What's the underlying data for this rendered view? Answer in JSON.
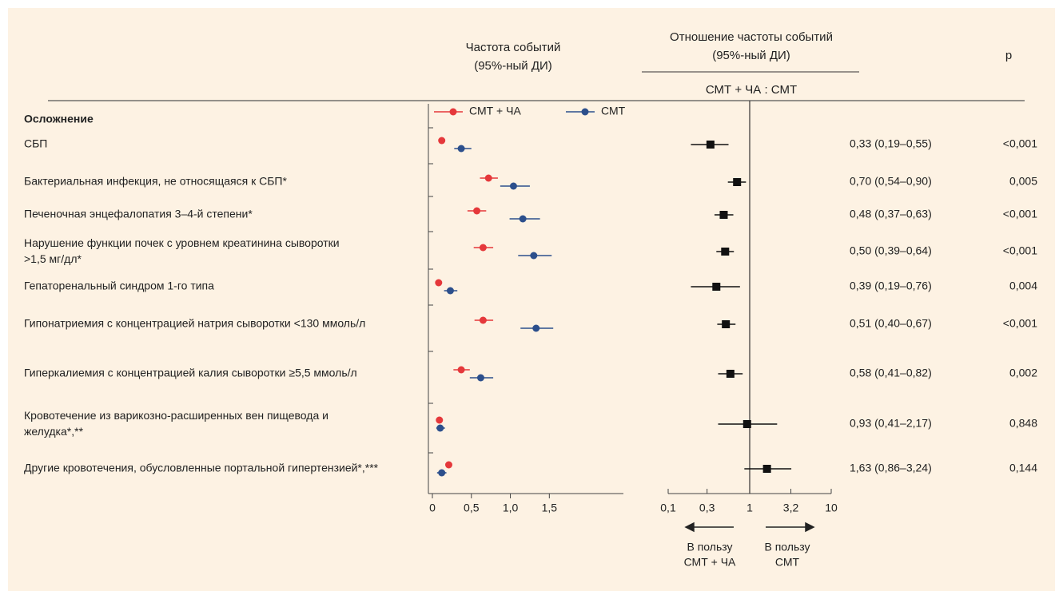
{
  "rows_header": "Осложнение",
  "p_title": "p",
  "p_values": [
    {
      "value": 0.001,
      "label": "<0,001"
    },
    {
      "value": 0.005,
      "label": "0,005"
    },
    {
      "value": 0.001,
      "label": "<0,001"
    },
    {
      "value": 0.001,
      "label": "<0,001"
    },
    {
      "value": 0.004,
      "label": "0,004"
    },
    {
      "value": 0.001,
      "label": "<0,001"
    },
    {
      "value": 0.002,
      "label": "0,002"
    },
    {
      "value": 0.848,
      "label": "0,848"
    },
    {
      "value": 0.144,
      "label": "0,144"
    }
  ],
  "chart_data": [
    {
      "type": "forest",
      "title": "Частота событий",
      "subtitle": "(95%-ный ДИ)",
      "categories": [
        "СБП",
        "Бактериальная инфекция, не относящаяся к СБП*",
        "Печеночная энцефалопатия 3–4-й степени*",
        "Нарушение функции почек с уровнем креатинина сыворотки\n>1,5 мг/дл*",
        "Гепаторенальный синдром 1-го типа",
        "Гипонатриемия с концентрацией натрия сыворотки <130 ммоль/л",
        "Гиперкалиемия с концентрацией калия сыворотки ≥5,5 ммоль/л",
        "Кровотечение из варикозно-расширенных вен пищевода и\nжелудка*,**",
        "Другие кровотечения, обусловленные портальной гипертензией*,***"
      ],
      "series": [
        {
          "name": "СМТ + ЧА",
          "color": "#e5383b",
          "values": [
            0.12,
            0.72,
            0.57,
            0.65,
            0.08,
            0.65,
            0.37,
            0.09,
            0.21
          ],
          "lower": [
            0.08,
            0.61,
            0.45,
            0.53,
            0.04,
            0.54,
            0.27,
            0.05,
            0.17
          ],
          "upper": [
            0.16,
            0.84,
            0.69,
            0.78,
            0.12,
            0.78,
            0.48,
            0.13,
            0.25
          ]
        },
        {
          "name": "СМТ",
          "color": "#2c4f8c",
          "values": [
            0.37,
            1.04,
            1.16,
            1.3,
            0.23,
            1.33,
            0.62,
            0.1,
            0.12
          ],
          "lower": [
            0.28,
            0.87,
            0.99,
            1.1,
            0.15,
            1.13,
            0.48,
            0.05,
            0.06
          ],
          "upper": [
            0.5,
            1.25,
            1.38,
            1.53,
            0.32,
            1.55,
            0.78,
            0.16,
            0.18
          ]
        }
      ],
      "xlim": [
        0,
        2.45
      ],
      "xticks": [
        0,
        {
          "value": 0.5,
          "label": "0,5"
        },
        {
          "value": 1,
          "label": "1,0"
        },
        {
          "value": 1.5,
          "label": "1,5"
        }
      ]
    },
    {
      "type": "forest",
      "log": true,
      "title": "Отношение частоты событий",
      "subtitle": "(95%-ный ДИ)",
      "xlabel": "СМТ + ЧА : СМТ",
      "color": "#111111",
      "values": [
        0.33,
        0.7,
        0.48,
        0.5,
        0.39,
        0.51,
        0.58,
        0.93,
        1.63
      ],
      "lower": [
        0.19,
        0.54,
        0.37,
        0.39,
        0.19,
        0.4,
        0.41,
        0.41,
        0.86
      ],
      "upper": [
        0.55,
        0.9,
        0.63,
        0.64,
        0.76,
        0.67,
        0.82,
        2.17,
        3.24
      ],
      "value_labels": [
        "0,33 (0,19–0,55)",
        "0,70 (0,54–0,90)",
        "0,48 (0,37–0,63)",
        "0,50 (0,39–0,64)",
        "0,39 (0,19–0,76)",
        "0,51 (0,40–0,67)",
        "0,58 (0,41–0,82)",
        "0,93 (0,41–2,17)",
        "1,63 (0,86–3,24)"
      ],
      "xlim": [
        0.1,
        10
      ],
      "xticks": [
        {
          "value": 0.1,
          "label": "0,1"
        },
        {
          "value": 0.3,
          "label": "0,3"
        },
        1,
        {
          "value": 3.2,
          "label": "3,2"
        },
        10
      ],
      "annotations": [
        "В пользу\nСМТ + ЧА",
        "В пользу\nСМТ"
      ]
    }
  ]
}
